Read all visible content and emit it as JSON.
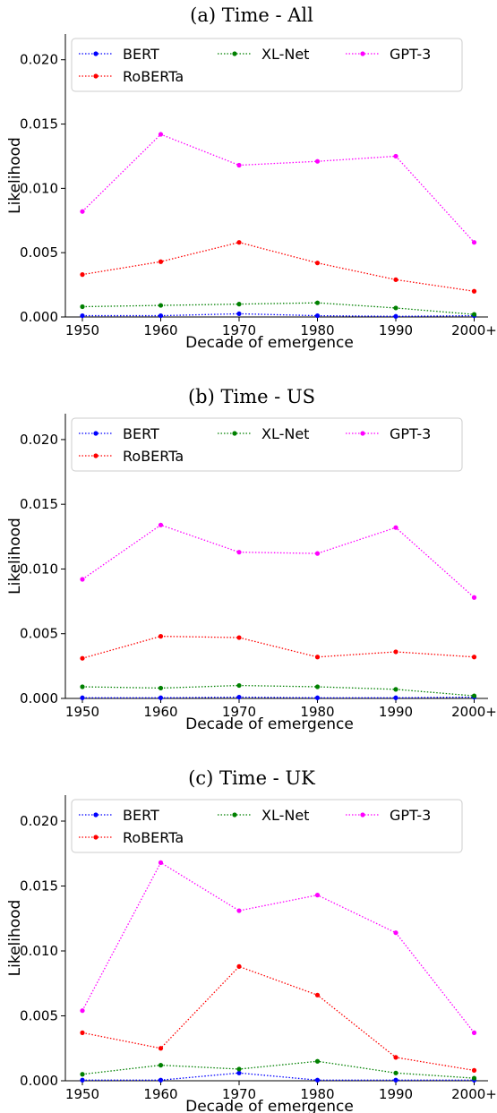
{
  "chart_data": [
    {
      "type": "line",
      "title": "(a) Time - All",
      "xlabel": "Decade of emergence",
      "ylabel": "Likelihood",
      "categories": [
        "1950",
        "1960",
        "1970",
        "1980",
        "1990",
        "2000+"
      ],
      "yticks": [
        "0.000",
        "0.005",
        "0.010",
        "0.015",
        "0.020"
      ],
      "ylim": [
        0,
        0.022
      ],
      "grid": false,
      "legend": "top-left",
      "series": [
        {
          "name": "BERT",
          "color": "#0000ff",
          "values": [
            0.0001,
            0.0001,
            0.00025,
            0.0001,
            5e-05,
            0.0001
          ]
        },
        {
          "name": "RoBERTa",
          "color": "#ff0000",
          "values": [
            0.0033,
            0.0043,
            0.0058,
            0.0042,
            0.0029,
            0.002
          ]
        },
        {
          "name": "XL-Net",
          "color": "#008000",
          "values": [
            0.0008,
            0.0009,
            0.001,
            0.0011,
            0.0007,
            0.0002
          ]
        },
        {
          "name": "GPT-3",
          "color": "#ff00ff",
          "values": [
            0.0082,
            0.0142,
            0.0118,
            0.0121,
            0.0125,
            0.0058
          ]
        }
      ]
    },
    {
      "type": "line",
      "title": "(b) Time - US",
      "xlabel": "Decade of emergence",
      "ylabel": "Likelihood",
      "categories": [
        "1950",
        "1960",
        "1970",
        "1980",
        "1990",
        "2000+"
      ],
      "yticks": [
        "0.000",
        "0.005",
        "0.010",
        "0.015",
        "0.020"
      ],
      "ylim": [
        0,
        0.022
      ],
      "grid": false,
      "legend": "top-left",
      "series": [
        {
          "name": "BERT",
          "color": "#0000ff",
          "values": [
            5e-05,
            5e-05,
            0.0001,
            5e-05,
            5e-05,
            0.0001
          ]
        },
        {
          "name": "RoBERTa",
          "color": "#ff0000",
          "values": [
            0.0031,
            0.0048,
            0.0047,
            0.0032,
            0.0036,
            0.0032
          ]
        },
        {
          "name": "XL-Net",
          "color": "#008000",
          "values": [
            0.0009,
            0.0008,
            0.001,
            0.0009,
            0.0007,
            0.0002
          ]
        },
        {
          "name": "GPT-3",
          "color": "#ff00ff",
          "values": [
            0.0092,
            0.0134,
            0.0113,
            0.0112,
            0.0132,
            0.0078
          ]
        }
      ]
    },
    {
      "type": "line",
      "title": "(c) Time - UK",
      "xlabel": "Decade of emergence",
      "ylabel": "Likelihood",
      "categories": [
        "1950",
        "1960",
        "1970",
        "1980",
        "1990",
        "2000+"
      ],
      "yticks": [
        "0.000",
        "0.005",
        "0.010",
        "0.015",
        "0.020"
      ],
      "ylim": [
        0,
        0.022
      ],
      "grid": false,
      "legend": "top-left",
      "series": [
        {
          "name": "BERT",
          "color": "#0000ff",
          "values": [
            5e-05,
            5e-05,
            0.0006,
            5e-05,
            5e-05,
            5e-05
          ]
        },
        {
          "name": "RoBERTa",
          "color": "#ff0000",
          "values": [
            0.0037,
            0.0025,
            0.0088,
            0.0066,
            0.0018,
            0.0008
          ]
        },
        {
          "name": "XL-Net",
          "color": "#008000",
          "values": [
            0.0005,
            0.0012,
            0.0009,
            0.0015,
            0.0006,
            0.0002
          ]
        },
        {
          "name": "GPT-3",
          "color": "#ff00ff",
          "values": [
            0.0054,
            0.0168,
            0.0131,
            0.0143,
            0.0114,
            0.0037
          ]
        }
      ]
    }
  ]
}
